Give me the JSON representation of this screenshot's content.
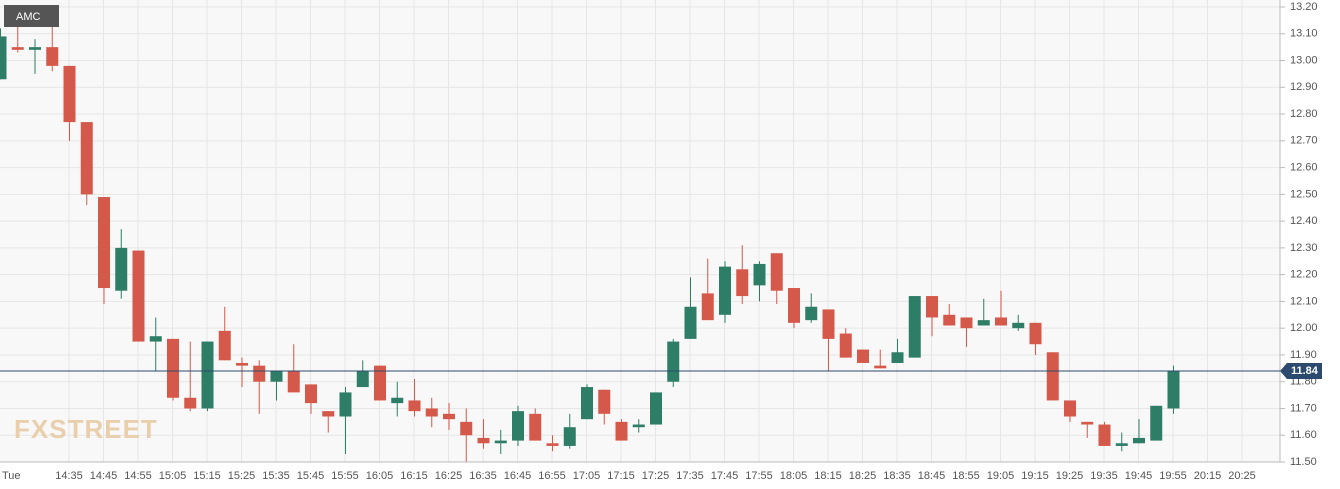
{
  "chart_data": {
    "type": "candlestick",
    "symbol": "AMC",
    "logo": "FXSTREET",
    "categories": [
      "Tue",
      null,
      null,
      null,
      "14:35",
      null,
      "14:45",
      null,
      "14:55",
      null,
      "15:05",
      null,
      "15:15",
      null,
      "15:25",
      null,
      "15:35",
      null,
      "15:45",
      null,
      "15:55",
      null,
      "16:05",
      null,
      "16:15",
      null,
      "16:25",
      null,
      "16:35",
      null,
      "16:45",
      null,
      "16:55",
      null,
      "17:05",
      null,
      "17:15",
      null,
      "17:25",
      null,
      "17:35",
      null,
      "17:45",
      null,
      "17:55",
      null,
      "18:05",
      null,
      "18:15",
      null,
      "18:25",
      null,
      "18:35",
      null,
      "18:45",
      null,
      "18:55",
      null,
      "19:05",
      null,
      "19:15",
      null,
      "19:25",
      null,
      "19:35",
      null,
      "19:45",
      null,
      "19:55",
      null,
      "20:15",
      null,
      "20:25"
    ],
    "open": [
      12.93,
      13.05,
      13.04,
      13.05,
      12.98,
      12.77,
      12.49,
      12.14,
      12.29,
      11.95,
      11.96,
      11.74,
      11.7,
      11.99,
      11.87,
      11.86,
      11.8,
      11.84,
      11.79,
      11.69,
      11.67,
      11.78,
      11.86,
      11.72,
      11.73,
      11.7,
      11.68,
      11.65,
      11.59,
      11.57,
      11.58,
      11.68,
      11.57,
      11.56,
      11.66,
      11.77,
      11.65,
      11.63,
      11.64,
      11.8,
      11.96,
      12.13,
      12.05,
      12.22,
      12.16,
      12.28,
      12.15,
      12.03,
      12.07,
      11.98,
      11.92,
      11.86,
      11.87,
      11.89,
      12.12,
      12.05,
      12.04,
      12.01,
      12.04,
      12.0,
      12.02,
      11.91,
      11.73,
      11.65,
      11.64,
      11.56,
      11.57,
      11.58,
      11.7,
      null,
      null,
      null,
      null
    ],
    "high": [
      13.12,
      13.2,
      13.08,
      13.19,
      12.98,
      12.77,
      12.49,
      12.37,
      12.29,
      12.04,
      11.96,
      11.95,
      11.95,
      12.08,
      11.89,
      11.88,
      11.84,
      11.94,
      11.79,
      11.69,
      11.78,
      11.88,
      11.86,
      11.8,
      11.81,
      11.74,
      11.72,
      11.7,
      11.66,
      11.62,
      11.71,
      11.7,
      11.6,
      11.68,
      11.79,
      11.77,
      11.66,
      11.66,
      11.76,
      11.96,
      12.19,
      12.26,
      12.25,
      12.31,
      12.25,
      12.28,
      12.15,
      12.13,
      12.07,
      12.0,
      11.92,
      11.92,
      11.96,
      12.12,
      12.12,
      12.09,
      12.04,
      12.11,
      12.14,
      12.05,
      12.02,
      11.91,
      11.73,
      11.65,
      11.65,
      11.61,
      11.66,
      11.71,
      11.86,
      null,
      null,
      null,
      null
    ],
    "low": [
      12.93,
      13.03,
      12.95,
      12.96,
      12.7,
      12.46,
      12.09,
      12.11,
      11.95,
      11.84,
      11.73,
      11.69,
      11.69,
      11.88,
      11.78,
      11.68,
      11.73,
      11.76,
      11.68,
      11.61,
      11.53,
      11.78,
      11.73,
      11.67,
      11.67,
      11.63,
      11.62,
      11.5,
      11.55,
      11.53,
      11.56,
      11.58,
      11.54,
      11.55,
      11.66,
      11.64,
      11.58,
      11.61,
      11.64,
      11.78,
      11.96,
      12.03,
      12.02,
      12.09,
      12.1,
      12.09,
      12.0,
      12.02,
      11.84,
      11.89,
      11.87,
      11.85,
      11.87,
      11.89,
      11.97,
      12.01,
      11.93,
      12.01,
      12.01,
      11.99,
      11.9,
      11.73,
      11.65,
      11.59,
      11.56,
      11.54,
      11.57,
      11.58,
      11.68,
      null,
      null,
      null,
      null
    ],
    "close": [
      13.09,
      13.04,
      13.05,
      12.98,
      12.77,
      12.5,
      12.15,
      12.3,
      11.95,
      11.97,
      11.74,
      11.7,
      11.95,
      11.88,
      11.86,
      11.8,
      11.84,
      11.76,
      11.72,
      11.67,
      11.76,
      11.84,
      11.73,
      11.74,
      11.69,
      11.67,
      11.66,
      11.6,
      11.57,
      11.58,
      11.69,
      11.58,
      11.56,
      11.63,
      11.78,
      11.68,
      11.58,
      11.64,
      11.76,
      11.95,
      12.08,
      12.03,
      12.23,
      12.12,
      12.24,
      12.14,
      12.02,
      12.08,
      11.96,
      11.89,
      11.87,
      11.85,
      11.91,
      12.12,
      12.04,
      12.01,
      12.0,
      12.03,
      12.01,
      12.02,
      11.94,
      11.73,
      11.67,
      11.64,
      11.56,
      11.57,
      11.59,
      11.71,
      11.84,
      null,
      null,
      null,
      null
    ],
    "up_color": "#2e7d66",
    "down_color": "#d5594a",
    "last_price": 11.84,
    "last_price_color": "#2c4a6e",
    "ylim": [
      11.5,
      13.2
    ],
    "yticks": [
      {
        "value": 11.5,
        "label": "11.50"
      },
      {
        "value": 11.6,
        "label": "11.60"
      },
      {
        "value": 11.7,
        "label": "11.70"
      },
      {
        "value": 11.8,
        "label": "11.80"
      },
      {
        "value": 11.9,
        "label": "11.90"
      },
      {
        "value": 12.0,
        "label": "12.00"
      },
      {
        "value": 12.1,
        "label": "12.10"
      },
      {
        "value": 12.2,
        "label": "12.20"
      },
      {
        "value": 12.3,
        "label": "12.30"
      },
      {
        "value": 12.4,
        "label": "12.40"
      },
      {
        "value": 12.5,
        "label": "12.50"
      },
      {
        "value": 12.6,
        "label": "12.60"
      },
      {
        "value": 12.7,
        "label": "12.70"
      },
      {
        "value": 12.8,
        "label": "12.80"
      },
      {
        "value": 12.9,
        "label": "12.90"
      },
      {
        "value": 13.0,
        "label": "13.00"
      },
      {
        "value": 13.1,
        "label": "13.10"
      },
      {
        "value": 13.2,
        "label": "13.20"
      }
    ],
    "grid": true
  }
}
